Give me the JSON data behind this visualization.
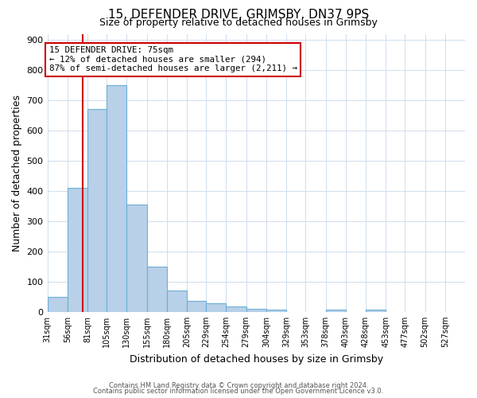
{
  "title": "15, DEFENDER DRIVE, GRIMSBY, DN37 9PS",
  "subtitle": "Size of property relative to detached houses in Grimsby",
  "xlabel": "Distribution of detached houses by size in Grimsby",
  "ylabel": "Number of detached properties",
  "bin_labels": [
    "31sqm",
    "56sqm",
    "81sqm",
    "105sqm",
    "130sqm",
    "155sqm",
    "180sqm",
    "205sqm",
    "229sqm",
    "254sqm",
    "279sqm",
    "304sqm",
    "329sqm",
    "353sqm",
    "378sqm",
    "403sqm",
    "428sqm",
    "453sqm",
    "477sqm",
    "502sqm",
    "527sqm"
  ],
  "bar_values": [
    50,
    410,
    670,
    750,
    355,
    150,
    70,
    37,
    28,
    18,
    10,
    7,
    0,
    0,
    7,
    0,
    7,
    0,
    0,
    0,
    0
  ],
  "bar_color": "#b8d0e8",
  "bar_edge_color": "#6baed6",
  "property_line_x": 75,
  "property_line_color": "#cc0000",
  "ylim": [
    0,
    920
  ],
  "yticks": [
    0,
    100,
    200,
    300,
    400,
    500,
    600,
    700,
    800,
    900
  ],
  "annotation_title": "15 DEFENDER DRIVE: 75sqm",
  "annotation_line1": "← 12% of detached houses are smaller (294)",
  "annotation_line2": "87% of semi-detached houses are larger (2,211) →",
  "annotation_box_color": "#cc0000",
  "footer_line1": "Contains HM Land Registry data © Crown copyright and database right 2024.",
  "footer_line2": "Contains public sector information licensed under the Open Government Licence v3.0.",
  "bin_edges": [
    31,
    56,
    81,
    105,
    130,
    155,
    180,
    205,
    229,
    254,
    279,
    304,
    329,
    353,
    378,
    403,
    428,
    453,
    477,
    502,
    527,
    552
  ]
}
